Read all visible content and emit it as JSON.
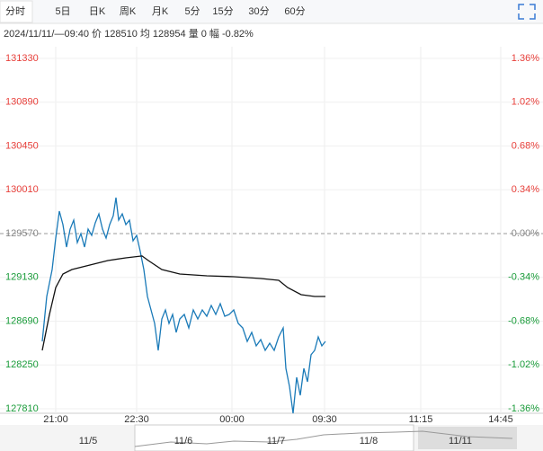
{
  "tabs": [
    "分时",
    "5日",
    "日K",
    "周K",
    "月K",
    "5分",
    "15分",
    "30分",
    "60分"
  ],
  "info": "2024/11/11/—09:40 价 128510 均 128954 量 0 幅 -0.82%",
  "navigator_labels": [
    "11/5",
    "11/6",
    "11/7",
    "11/8",
    "11/11"
  ],
  "chart_data": {
    "type": "line",
    "xlim": [
      0,
      553
    ],
    "xticks": [
      {
        "value": 15,
        "label": "21:00"
      },
      {
        "value": 105,
        "label": "22:30"
      },
      {
        "value": 211,
        "label": "00:00"
      },
      {
        "value": 314,
        "label": "09:30"
      },
      {
        "value": 421,
        "label": "11:15"
      },
      {
        "value": 510,
        "label": "14:45"
      }
    ],
    "ylim": [
      127810,
      131330
    ],
    "yticks": [
      131330,
      130890,
      130450,
      130010,
      129570,
      129130,
      128690,
      128250,
      127810
    ],
    "y2lim": [
      -1.36,
      1.36
    ],
    "y2ticks": [
      {
        "value": 1.36,
        "label": "1.36%"
      },
      {
        "value": 1.02,
        "label": "1.02%"
      },
      {
        "value": 0.68,
        "label": "0.68%"
      },
      {
        "value": 0.34,
        "label": "0.34%"
      },
      {
        "value": 0,
        "label": "0.00%"
      },
      {
        "value": -0.34,
        "label": "-0.34%"
      },
      {
        "value": -0.68,
        "label": "-0.68%"
      },
      {
        "value": -1.02,
        "label": "-1.02%"
      },
      {
        "value": -1.36,
        "label": "-1.36%"
      }
    ],
    "up_color": "#e8413c",
    "down_color": "#1a9c3a",
    "flat_color": "#888888",
    "series": [
      {
        "name": "价",
        "color": "#1a7ab8",
        "x": [
          0,
          5,
          11,
          15,
          19,
          23,
          27,
          31,
          35,
          39,
          43,
          47,
          51,
          55,
          59,
          63,
          67,
          71,
          75,
          79,
          82,
          85,
          89,
          93,
          97,
          101,
          105,
          109,
          113,
          117,
          121,
          125,
          129,
          133,
          137,
          141,
          145,
          149,
          153,
          158,
          163,
          168,
          173,
          178,
          183,
          188,
          193,
          198,
          203,
          208,
          213,
          218,
          223,
          228,
          233,
          238,
          243,
          248,
          253,
          258,
          263,
          268,
          271,
          275,
          279,
          283,
          287,
          291,
          295,
          299,
          303,
          307,
          311,
          315
        ],
        "values": [
          128487,
          128938,
          129209,
          129525,
          129796,
          129660,
          129435,
          129615,
          129705,
          129480,
          129570,
          129435,
          129615,
          129552,
          129678,
          129768,
          129615,
          129525,
          129660,
          129750,
          129931,
          129705,
          129768,
          129660,
          129705,
          129498,
          129552,
          129390,
          129209,
          128938,
          128803,
          128667,
          128397,
          128713,
          128803,
          128667,
          128758,
          128577,
          128713,
          128758,
          128622,
          128803,
          128713,
          128803,
          128740,
          128848,
          128758,
          128866,
          128740,
          128758,
          128803,
          128667,
          128622,
          128487,
          128577,
          128442,
          128505,
          128397,
          128469,
          128397,
          128532,
          128622,
          128216,
          128035,
          127764,
          128126,
          127945,
          128216,
          128081,
          128352,
          128397,
          128532,
          128442,
          128487
        ]
      },
      {
        "name": "均",
        "color": "#111111",
        "x": [
          0,
          8,
          15,
          23,
          33,
          53,
          73,
          93,
          111,
          118,
          133,
          153,
          183,
          213,
          243,
          263,
          273,
          288,
          303,
          315
        ],
        "values": [
          128397,
          128758,
          129028,
          129164,
          129209,
          129254,
          129299,
          129326,
          129345,
          129299,
          129209,
          129164,
          129146,
          129137,
          129119,
          129101,
          129028,
          128956,
          128938,
          128938
        ]
      }
    ]
  }
}
